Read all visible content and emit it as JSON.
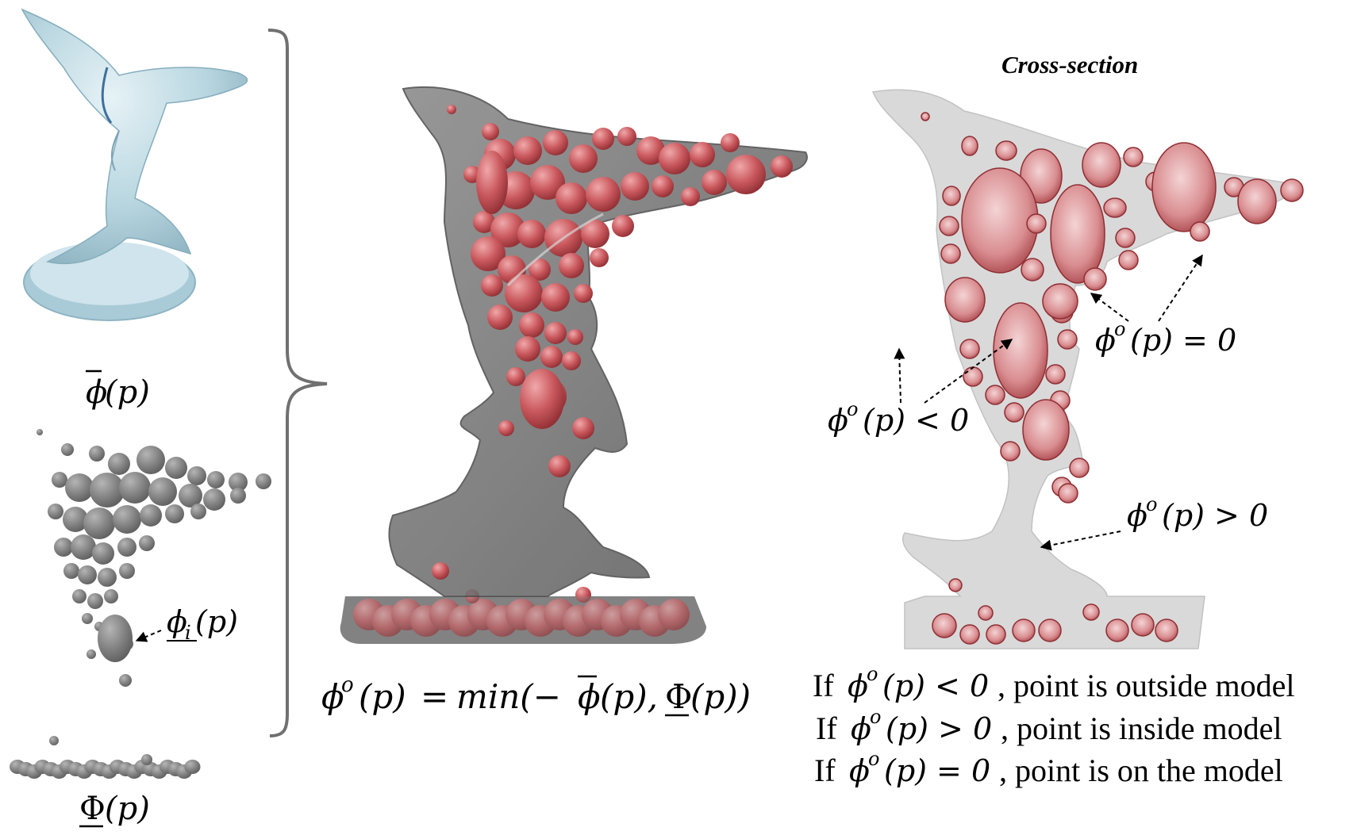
{
  "colors": {
    "shark_blue": "#b8d6e0",
    "gray_solid": "#7b7b7b",
    "translucent_gray": "#6e6e6e",
    "red_sphere": "#c9585d",
    "cross_section": "#d9d9d9",
    "bracket": "#707070"
  },
  "labels": {
    "phi_bar": "ϕ̄(p)",
    "phi_i": "ϕ_i(p)",
    "Phi_under": "Φ(p)",
    "equation": "ϕᵒ(p) = min(−ϕ̄(p), Φ(p))",
    "cross_section_title": "Cross-section",
    "phi_o_zero": "ϕᵒ(p) = 0",
    "phi_o_neg": "ϕᵒ(p) < 0",
    "phi_o_pos": "ϕᵒ(p) > 0"
  },
  "conditions": [
    {
      "math": "ϕᵒ(p) < 0",
      "text": "If ϕᵒ(p) < 0, point is outside model"
    },
    {
      "math": "ϕᵒ(p) > 0",
      "text": "If ϕᵒ(p) > 0, point is inside model"
    },
    {
      "math": "ϕᵒ(p) = 0",
      "text": "If ϕᵒ(p) = 0, point is on the model"
    }
  ],
  "text_parts": {
    "if": "If",
    "cond1_tail": ", point is outside model",
    "cond2_tail": ", point is inside model",
    "cond3_tail": ", point is on the model",
    "phi": "ϕ",
    "o": "o",
    "p_paren": "(p)",
    "lt0": "< 0",
    "gt0": "> 0",
    "eq0": "= 0",
    "min_open": "= min(−",
    "comma": ",",
    "close": "))",
    "Phi": "Φ",
    "i": "i"
  },
  "icons": {
    "shark": "shark-statue-icon",
    "spheres": "sphere-cluster-icon",
    "base": "base-spheres-icon"
  }
}
